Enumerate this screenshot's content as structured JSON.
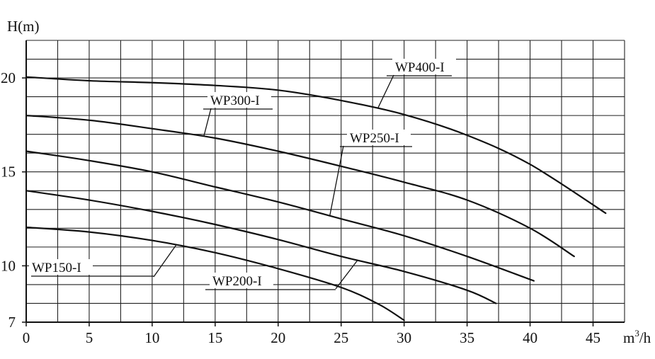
{
  "chart_data": {
    "type": "line",
    "title": "",
    "xlabel_prefix": "m",
    "xlabel_sup": "3",
    "xlabel_suffix": "/h",
    "ylabel": "H(m)",
    "xlim": [
      0,
      47.5
    ],
    "ylim": [
      7,
      22
    ],
    "xticks": [
      0,
      5,
      10,
      15,
      20,
      25,
      30,
      35,
      40,
      45
    ],
    "xtick_labels": [
      "0",
      "5",
      "10",
      "15",
      "20",
      "25",
      "30",
      "35",
      "40",
      "45"
    ],
    "yticks": [
      7,
      10,
      15,
      20
    ],
    "ytick_labels": [
      "7",
      "10",
      "15",
      "20"
    ],
    "grid": true,
    "legend": "none",
    "colors": {
      "line": "#111111",
      "grid": "#222222",
      "background": "#ffffff"
    },
    "series": [
      {
        "name": "WP150-I",
        "x": [
          0,
          5,
          10,
          15,
          20,
          25,
          28,
          30
        ],
        "y": [
          12.05,
          11.8,
          11.35,
          10.7,
          9.85,
          8.85,
          7.95,
          7.1
        ]
      },
      {
        "name": "WP200-I",
        "x": [
          0,
          5,
          10,
          15,
          20,
          25,
          30,
          35,
          37.3
        ],
        "y": [
          14.0,
          13.5,
          12.9,
          12.2,
          11.4,
          10.5,
          9.7,
          8.7,
          8.0
        ]
      },
      {
        "name": "WP250-I",
        "x": [
          0,
          5,
          10,
          15,
          20,
          25,
          30,
          35,
          40.3
        ],
        "y": [
          16.1,
          15.6,
          15.0,
          14.2,
          13.4,
          12.5,
          11.6,
          10.5,
          9.2
        ]
      },
      {
        "name": "WP300-I",
        "x": [
          0,
          5,
          10,
          15,
          20,
          25,
          30,
          35,
          40,
          43.5
        ],
        "y": [
          18.0,
          17.75,
          17.3,
          16.8,
          16.1,
          15.3,
          14.45,
          13.5,
          12.0,
          10.5
        ]
      },
      {
        "name": "WP400-I",
        "x": [
          0,
          5,
          10,
          15,
          20,
          25,
          30,
          35,
          40,
          46
        ],
        "y": [
          20.05,
          19.85,
          19.75,
          19.6,
          19.35,
          18.8,
          18.05,
          16.95,
          15.4,
          12.8
        ]
      }
    ]
  }
}
